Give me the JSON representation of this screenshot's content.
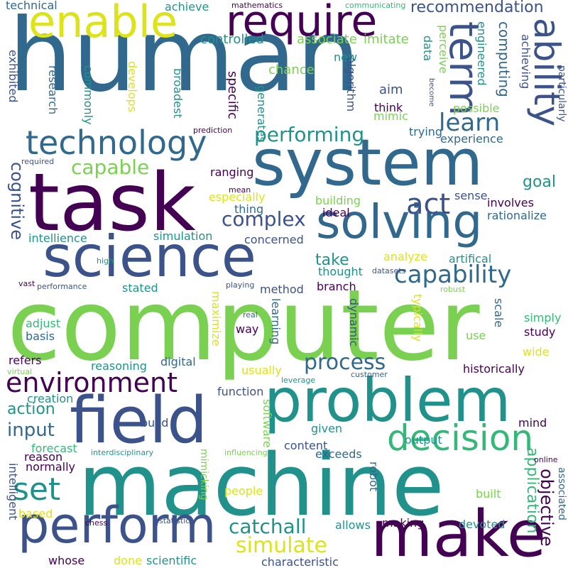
{
  "palette": {
    "dark_purple": "#440154",
    "indigo": "#3b528b",
    "slate_blue": "#31688e",
    "teal": "#21918c",
    "green": "#35b779",
    "lime": "#7ad151",
    "yellow": "#dde318"
  },
  "words": [
    {
      "text": "human",
      "color": "#31688e",
      "vertical": false
    },
    {
      "text": "computer",
      "color": "#7ad151",
      "vertical": false
    },
    {
      "text": "machine",
      "color": "#21918c",
      "vertical": false
    },
    {
      "text": "task",
      "color": "#440154",
      "vertical": false
    },
    {
      "text": "system",
      "color": "#31688e",
      "vertical": false
    },
    {
      "text": "science",
      "color": "#3b528b",
      "vertical": false
    },
    {
      "text": "problem",
      "color": "#21918c",
      "vertical": false
    },
    {
      "text": "field",
      "color": "#3b528b",
      "vertical": false
    },
    {
      "text": "make",
      "color": "#440154",
      "vertical": false
    },
    {
      "text": "perform",
      "color": "#3b528b",
      "vertical": false
    },
    {
      "text": "enable",
      "color": "#dde318",
      "vertical": false
    },
    {
      "text": "require",
      "color": "#440154",
      "vertical": false
    },
    {
      "text": "solving",
      "color": "#31688e",
      "vertical": false
    },
    {
      "text": "technology",
      "color": "#31688e",
      "vertical": false
    },
    {
      "text": "environment",
      "color": "#440154",
      "vertical": false
    },
    {
      "text": "decision",
      "color": "#35b779",
      "vertical": false
    },
    {
      "text": "ability",
      "color": "#3b528b",
      "vertical": true
    },
    {
      "text": "term",
      "color": "#3b528b",
      "vertical": true
    },
    {
      "text": "set",
      "color": "#21918c",
      "vertical": false
    },
    {
      "text": "act",
      "color": "#3b528b",
      "vertical": false
    },
    {
      "text": "complex",
      "color": "#3b528b",
      "vertical": false
    },
    {
      "text": "capability",
      "color": "#31688e",
      "vertical": false
    },
    {
      "text": "learn",
      "color": "#31688e",
      "vertical": false
    },
    {
      "text": "performing",
      "color": "#21918c",
      "vertical": false
    },
    {
      "text": "capable",
      "color": "#7ad151",
      "vertical": false
    },
    {
      "text": "process",
      "color": "#31688e",
      "vertical": false
    },
    {
      "text": "simulate",
      "color": "#dde318",
      "vertical": false
    },
    {
      "text": "catchall",
      "color": "#21918c",
      "vertical": false
    },
    {
      "text": "input",
      "color": "#31688e",
      "vertical": false
    },
    {
      "text": "cognitive",
      "color": "#3b528b",
      "vertical": true
    },
    {
      "text": "recommendation",
      "color": "#3b528b",
      "vertical": false
    },
    {
      "text": "computing",
      "color": "#31688e",
      "vertical": true
    },
    {
      "text": "goal",
      "color": "#21918c",
      "vertical": false
    },
    {
      "text": "take",
      "color": "#21918c",
      "vertical": false
    },
    {
      "text": "action",
      "color": "#21918c",
      "vertical": false
    },
    {
      "text": "objective",
      "color": "#440154",
      "vertical": true
    },
    {
      "text": "application",
      "color": "#35b779",
      "vertical": true
    },
    {
      "text": "controlled",
      "color": "#21918c",
      "vertical": false
    },
    {
      "text": "associate",
      "color": "#7ad151",
      "vertical": false
    },
    {
      "text": "imitate",
      "color": "#7ad151",
      "vertical": false
    },
    {
      "text": "chance",
      "color": "#7ad151",
      "vertical": false
    },
    {
      "text": "achieve",
      "color": "#21918c",
      "vertical": false
    },
    {
      "text": "technical",
      "color": "#31688e",
      "vertical": false
    },
    {
      "text": "exhibited",
      "color": "#3b528b",
      "vertical": true
    },
    {
      "text": "research",
      "color": "#31688e",
      "vertical": true
    },
    {
      "text": "commonly",
      "color": "#21918c",
      "vertical": true
    },
    {
      "text": "develops",
      "color": "#dde318",
      "vertical": true
    },
    {
      "text": "broadest",
      "color": "#21918c",
      "vertical": true
    },
    {
      "text": "specific",
      "color": "#440154",
      "vertical": true
    },
    {
      "text": "generates",
      "color": "#21918c",
      "vertical": true
    },
    {
      "text": "new",
      "color": "#21918c",
      "vertical": false
    },
    {
      "text": "aim",
      "color": "#3b528b",
      "vertical": false
    },
    {
      "text": "think",
      "color": "#440154",
      "vertical": false
    },
    {
      "text": "mimic",
      "color": "#7ad151",
      "vertical": false
    },
    {
      "text": "algorithm",
      "color": "#3b528b",
      "vertical": true
    },
    {
      "text": "data",
      "color": "#21918c",
      "vertical": true
    },
    {
      "text": "perceive",
      "color": "#7ad151",
      "vertical": true
    },
    {
      "text": "engineered",
      "color": "#21918c",
      "vertical": true
    },
    {
      "text": "achieving",
      "color": "#3b528b",
      "vertical": true
    },
    {
      "text": "particularly",
      "color": "#3b528b",
      "vertical": true
    },
    {
      "text": "possible",
      "color": "#7ad151",
      "vertical": false
    },
    {
      "text": "trying",
      "color": "#31688e",
      "vertical": false
    },
    {
      "text": "experience",
      "color": "#31688e",
      "vertical": false
    },
    {
      "text": "ranging",
      "color": "#440154",
      "vertical": false
    },
    {
      "text": "especially",
      "color": "#dde318",
      "vertical": false
    },
    {
      "text": "thing",
      "color": "#31688e",
      "vertical": false
    },
    {
      "text": "building",
      "color": "#7ad151",
      "vertical": false
    },
    {
      "text": "ideal",
      "color": "#440154",
      "vertical": false
    },
    {
      "text": "sense",
      "color": "#3b528b",
      "vertical": false
    },
    {
      "text": "involves",
      "color": "#440154",
      "vertical": false
    },
    {
      "text": "rationalize",
      "color": "#31688e",
      "vertical": false
    },
    {
      "text": "intellience",
      "color": "#21918c",
      "vertical": false
    },
    {
      "text": "simulation",
      "color": "#21918c",
      "vertical": false
    },
    {
      "text": "concerned",
      "color": "#3b528b",
      "vertical": false
    },
    {
      "text": "analyze",
      "color": "#dde318",
      "vertical": false
    },
    {
      "text": "artifical",
      "color": "#21918c",
      "vertical": false
    },
    {
      "text": "thought",
      "color": "#21918c",
      "vertical": false
    },
    {
      "text": "stated",
      "color": "#21918c",
      "vertical": false
    },
    {
      "text": "method",
      "color": "#3b528b",
      "vertical": false
    },
    {
      "text": "branch",
      "color": "#440154",
      "vertical": false
    },
    {
      "text": "scale",
      "color": "#31688e",
      "vertical": true
    },
    {
      "text": "simply",
      "color": "#35b779",
      "vertical": false
    },
    {
      "text": "study",
      "color": "#440154",
      "vertical": false
    },
    {
      "text": "adjust",
      "color": "#35b779",
      "vertical": false
    },
    {
      "text": "basis",
      "color": "#31688e",
      "vertical": false
    },
    {
      "text": "way",
      "color": "#440154",
      "vertical": false
    },
    {
      "text": "learning",
      "color": "#31688e",
      "vertical": true
    },
    {
      "text": "maximize",
      "color": "#dde318",
      "vertical": true
    },
    {
      "text": "dynamic",
      "color": "#3b528b",
      "vertical": true
    },
    {
      "text": "typically",
      "color": "#dde318",
      "vertical": true
    },
    {
      "text": "use",
      "color": "#7ad151",
      "vertical": false
    },
    {
      "text": "wide",
      "color": "#dde318",
      "vertical": false
    },
    {
      "text": "refers",
      "color": "#440154",
      "vertical": false
    },
    {
      "text": "reasoning",
      "color": "#21918c",
      "vertical": false
    },
    {
      "text": "digital",
      "color": "#31688e",
      "vertical": false
    },
    {
      "text": "usually",
      "color": "#dde318",
      "vertical": false
    },
    {
      "text": "historically",
      "color": "#440154",
      "vertical": false
    },
    {
      "text": "creation",
      "color": "#21918c",
      "vertical": false
    },
    {
      "text": "function",
      "color": "#3b528b",
      "vertical": false
    },
    {
      "text": "build",
      "color": "#3b528b",
      "vertical": false
    },
    {
      "text": "software",
      "color": "#7ad151",
      "vertical": true
    },
    {
      "text": "given",
      "color": "#21918c",
      "vertical": false
    },
    {
      "text": "output",
      "color": "#21918c",
      "vertical": false
    },
    {
      "text": "mind",
      "color": "#440154",
      "vertical": false
    },
    {
      "text": "forecast",
      "color": "#35b779",
      "vertical": false
    },
    {
      "text": "content",
      "color": "#3b528b",
      "vertical": false
    },
    {
      "text": "exceeds",
      "color": "#31688e",
      "vertical": false
    },
    {
      "text": "reason",
      "color": "#440154",
      "vertical": false
    },
    {
      "text": "normally",
      "color": "#440154",
      "vertical": false
    },
    {
      "text": "intelligent",
      "color": "#3b528b",
      "vertical": true
    },
    {
      "text": "people",
      "color": "#dde318",
      "vertical": false
    },
    {
      "text": "based",
      "color": "#dde318",
      "vertical": false
    },
    {
      "text": "robot",
      "color": "#31688e",
      "vertical": true
    },
    {
      "text": "built",
      "color": "#7ad151",
      "vertical": false
    },
    {
      "text": "associated",
      "color": "#31688e",
      "vertical": true
    },
    {
      "text": "allows",
      "color": "#21918c",
      "vertical": false
    },
    {
      "text": "making",
      "color": "#440154",
      "vertical": false
    },
    {
      "text": "devoted",
      "color": "#21918c",
      "vertical": false
    },
    {
      "text": "whose",
      "color": "#440154",
      "vertical": false
    },
    {
      "text": "done",
      "color": "#dde318",
      "vertical": false
    },
    {
      "text": "scientific",
      "color": "#21918c",
      "vertical": false
    },
    {
      "text": "characteristic",
      "color": "#3b528b",
      "vertical": false
    },
    {
      "text": "mimicking",
      "color": "#7ad151",
      "vertical": true
    },
    {
      "text": "interdisciplinary",
      "color": "#21918c",
      "vertical": false
    },
    {
      "text": "influencing",
      "color": "#7ad151",
      "vertical": false
    },
    {
      "text": "online",
      "color": "#440154",
      "vertical": false
    },
    {
      "text": "chess",
      "color": "#440154",
      "vertical": false
    },
    {
      "text": "statistic",
      "color": "#3b528b",
      "vertical": false
    },
    {
      "text": "virtual",
      "color": "#7ad151",
      "vertical": false
    },
    {
      "text": "leverage",
      "color": "#21918c",
      "vertical": false
    },
    {
      "text": "customer",
      "color": "#31688e",
      "vertical": false
    },
    {
      "text": "required",
      "color": "#3b528b",
      "vertical": false
    },
    {
      "text": "prediction",
      "color": "#440154",
      "vertical": false
    },
    {
      "text": "mean",
      "color": "#440154",
      "vertical": false
    },
    {
      "text": "high",
      "color": "#21918c",
      "vertical": false
    },
    {
      "text": "vast",
      "color": "#440154",
      "vertical": false
    },
    {
      "text": "performance",
      "color": "#3b528b",
      "vertical": false
    },
    {
      "text": "playing",
      "color": "#3b528b",
      "vertical": false
    },
    {
      "text": "datasets",
      "color": "#3b528b",
      "vertical": false
    },
    {
      "text": "robust",
      "color": "#7ad151",
      "vertical": false
    },
    {
      "text": "real",
      "color": "#31688e",
      "vertical": false
    },
    {
      "text": "mathematics",
      "color": "#440154",
      "vertical": false
    },
    {
      "text": "communicating",
      "color": "#35b779",
      "vertical": false
    },
    {
      "text": "become",
      "color": "#3b528b",
      "vertical": true
    }
  ]
}
